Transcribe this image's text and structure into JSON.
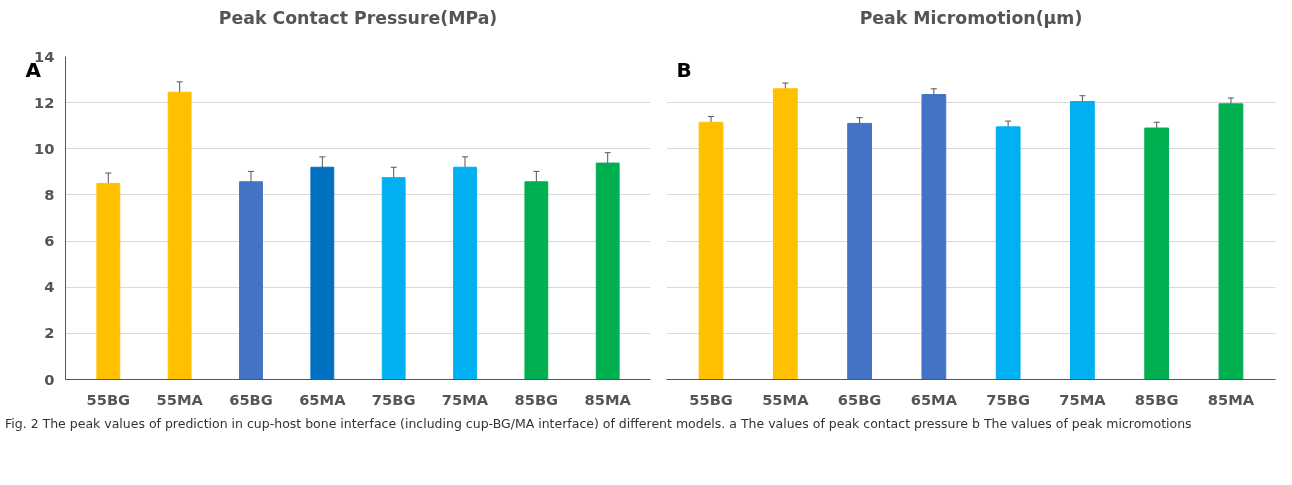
{
  "chart_data": [
    {
      "type": "bar",
      "title": "Peak Contact Pressure(MPa)",
      "annotations": [
        "A",
        "Fig. 2  The peak values of prediction in cup-host bone interface (including cup-BG/MA interface) of different models. a The values of peak contact pressure b The values of peak micromotions"
      ],
      "categories": [
        "55BG",
        "55MA",
        "65BG",
        "65MA",
        "75BG",
        "75MA",
        "85BG",
        "85MA"
      ],
      "values": [
        8.5,
        12.45,
        8.57,
        9.2,
        8.75,
        9.2,
        8.57,
        9.38
      ],
      "errors": [
        0.45,
        0.45,
        0.45,
        0.45,
        0.45,
        0.45,
        0.45,
        0.45
      ],
      "colors": [
        "#ffc000",
        "#ffc000",
        "#4472c4",
        "#0070c0",
        "#00b0f0",
        "#00b0f0",
        "#00b050",
        "#00b050"
      ],
      "ylim": [
        0,
        14
      ],
      "yticks": [
        0,
        2,
        4,
        6,
        8,
        10,
        12,
        14
      ],
      "grid": "y"
    },
    {
      "type": "bar",
      "title": "Peak Micromotion(μm)",
      "annotations": [
        "B"
      ],
      "categories": [
        "55BG",
        "55MA",
        "65BG",
        "65MA",
        "75BG",
        "75MA",
        "85BG",
        "85MA"
      ],
      "values": [
        11.15,
        12.6,
        11.1,
        12.35,
        10.95,
        12.05,
        10.9,
        11.95
      ],
      "errors": [
        0.25,
        0.25,
        0.25,
        0.25,
        0.25,
        0.25,
        0.25,
        0.25
      ],
      "colors": [
        "#ffc000",
        "#ffc000",
        "#4472c4",
        "#4472c4",
        "#00b0f0",
        "#00b0f0",
        "#00b050",
        "#00b050"
      ],
      "ylim": [
        0,
        14
      ],
      "yticks": [
        0,
        2,
        4,
        6,
        8,
        10,
        12,
        14
      ],
      "grid": "y",
      "tick_labels": "x"
    }
  ]
}
